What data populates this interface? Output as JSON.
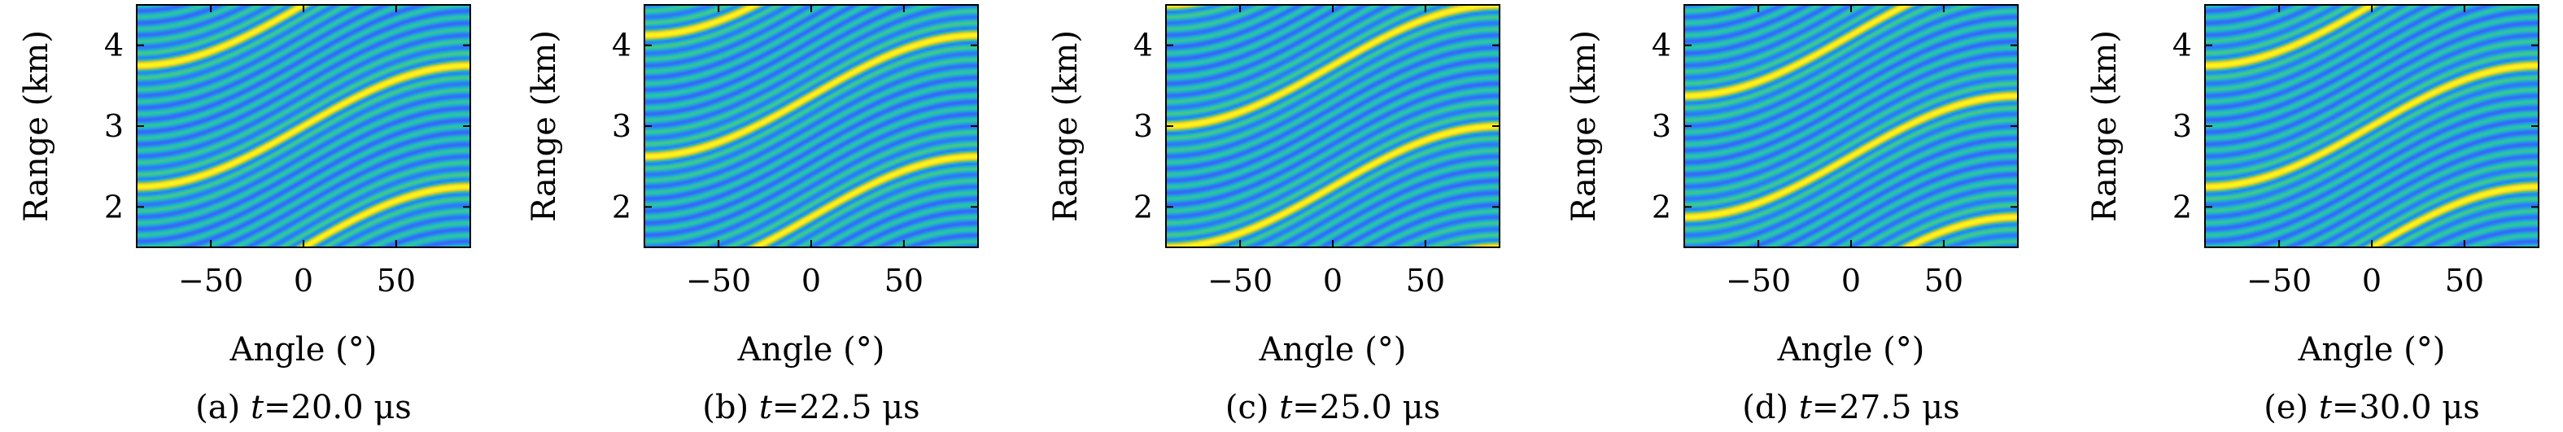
{
  "figure": {
    "panels": [
      {
        "id": "a",
        "prefix": "(a) ",
        "var": "t",
        "eq": "=20.0 μs"
      },
      {
        "id": "b",
        "prefix": "(b) ",
        "var": "t",
        "eq": "=22.5 μs"
      },
      {
        "id": "c",
        "prefix": "(c) ",
        "var": "t",
        "eq": "=25.0 μs"
      },
      {
        "id": "d",
        "prefix": "(d) ",
        "var": "t",
        "eq": "=27.5 μs"
      },
      {
        "id": "e",
        "prefix": "(e) ",
        "var": "t",
        "eq": "=30.0 μs"
      }
    ]
  },
  "colors": {
    "background": "#ffffff",
    "colormap": [
      "#3e26a8",
      "#4743f8",
      "#2f7bf5",
      "#1aa9df",
      "#27c2aa",
      "#7ccd54",
      "#f0ba2a",
      "#fadc2c",
      "#f9fb14"
    ],
    "axis": "#000000"
  },
  "chart_data": [
    {
      "type": "heatmap",
      "title": "",
      "xlabel": "Angle (°)",
      "ylabel": "Range (km)",
      "xlim": [
        -90,
        90
      ],
      "ylim": [
        1.5,
        4.5
      ],
      "xticks": [
        -50,
        0,
        50
      ],
      "yticks": [
        2,
        3,
        4
      ],
      "xtick_labels": [
        "−50",
        "0",
        "50"
      ],
      "ytick_labels": [
        "2",
        "3",
        "4"
      ],
      "time_us": 20.0,
      "peak_range_at_0deg_km": [
        1.5,
        3.0,
        4.5
      ],
      "stripe_period_km": 1.5,
      "sinusoid_amplitude_km": 0.75
    },
    {
      "type": "heatmap",
      "title": "",
      "xlabel": "Angle (°)",
      "ylabel": "Range (km)",
      "xlim": [
        -90,
        90
      ],
      "ylim": [
        1.5,
        4.5
      ],
      "xticks": [
        -50,
        0,
        50
      ],
      "yticks": [
        2,
        3,
        4
      ],
      "xtick_labels": [
        "−50",
        "0",
        "50"
      ],
      "ytick_labels": [
        "2",
        "3",
        "4"
      ],
      "time_us": 22.5,
      "peak_range_at_0deg_km": [
        1.875,
        3.375
      ],
      "stripe_period_km": 1.5,
      "sinusoid_amplitude_km": 0.75
    },
    {
      "type": "heatmap",
      "title": "",
      "xlabel": "Angle (°)",
      "ylabel": "Range (km)",
      "xlim": [
        -90,
        90
      ],
      "ylim": [
        1.5,
        4.5
      ],
      "xticks": [
        -50,
        0,
        50
      ],
      "yticks": [
        2,
        3,
        4
      ],
      "xtick_labels": [
        "−50",
        "0",
        "50"
      ],
      "ytick_labels": [
        "2",
        "3",
        "4"
      ],
      "time_us": 25.0,
      "peak_range_at_0deg_km": [
        2.25,
        3.75
      ],
      "stripe_period_km": 1.5,
      "sinusoid_amplitude_km": 0.75
    },
    {
      "type": "heatmap",
      "title": "",
      "xlabel": "Angle (°)",
      "ylabel": "Range (km)",
      "xlim": [
        -90,
        90
      ],
      "ylim": [
        1.5,
        4.5
      ],
      "xticks": [
        -50,
        0,
        50
      ],
      "yticks": [
        2,
        3,
        4
      ],
      "xtick_labels": [
        "−50",
        "0",
        "50"
      ],
      "ytick_labels": [
        "2",
        "3",
        "4"
      ],
      "time_us": 27.5,
      "peak_range_at_0deg_km": [
        2.625,
        4.125
      ],
      "stripe_period_km": 1.5,
      "sinusoid_amplitude_km": 0.75
    },
    {
      "type": "heatmap",
      "title": "",
      "xlabel": "Angle (°)",
      "ylabel": "Range (km)",
      "xlim": [
        -90,
        90
      ],
      "ylim": [
        1.5,
        4.5
      ],
      "xticks": [
        -50,
        0,
        50
      ],
      "yticks": [
        2,
        3,
        4
      ],
      "xtick_labels": [
        "−50",
        "0",
        "50"
      ],
      "ytick_labels": [
        "2",
        "3",
        "4"
      ],
      "time_us": 30.0,
      "peak_range_at_0deg_km": [
        1.5,
        3.0,
        4.5
      ],
      "stripe_period_km": 1.5,
      "sinusoid_amplitude_km": 0.75
    }
  ]
}
